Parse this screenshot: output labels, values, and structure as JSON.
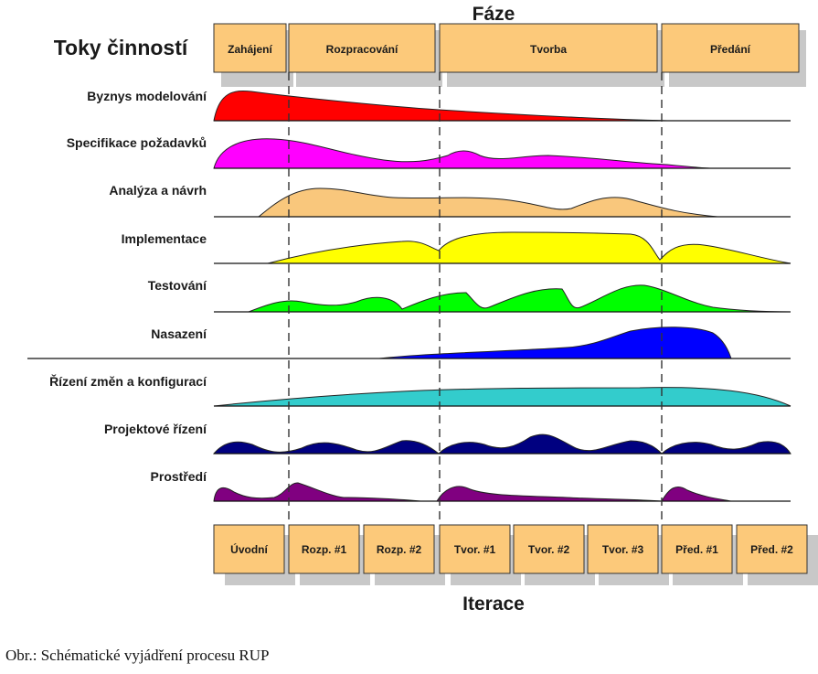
{
  "header": {
    "phases_title": "Fáze",
    "workflows_title": "Toky činností",
    "iterations_title": "Iterace"
  },
  "phases": [
    "Zahájení",
    "Rozpracování",
    "Tvorba",
    "Předání"
  ],
  "workflows": [
    {
      "label": "Byznys modelování",
      "color": "#ff0000"
    },
    {
      "label": "Specifikace požadavků",
      "color": "#ff00ff"
    },
    {
      "label": "Analýza a návrh",
      "color": "#f9c77c"
    },
    {
      "label": "Implementace",
      "color": "#ffff00"
    },
    {
      "label": "Testování",
      "color": "#00ff00"
    },
    {
      "label": "Nasazení",
      "color": "#0000ff"
    },
    {
      "label": "Řízení změn a konfigurací",
      "color": "#33cccc"
    },
    {
      "label": "Projektové řízení",
      "color": "#000080"
    },
    {
      "label": "Prostředí",
      "color": "#800080"
    }
  ],
  "iterations": [
    "Úvodní",
    "Rozp. #1",
    "Rozp. #2",
    "Tvor. #1",
    "Tvor. #2",
    "Tvor. #3",
    "Před. #1",
    "Před. #2"
  ],
  "colors": {
    "box_fill": "#fcc97a",
    "box_border": "#333333",
    "shadow": "#c8c8c8"
  },
  "caption": "Obr.: Schématické vyjádření procesu RUP"
}
